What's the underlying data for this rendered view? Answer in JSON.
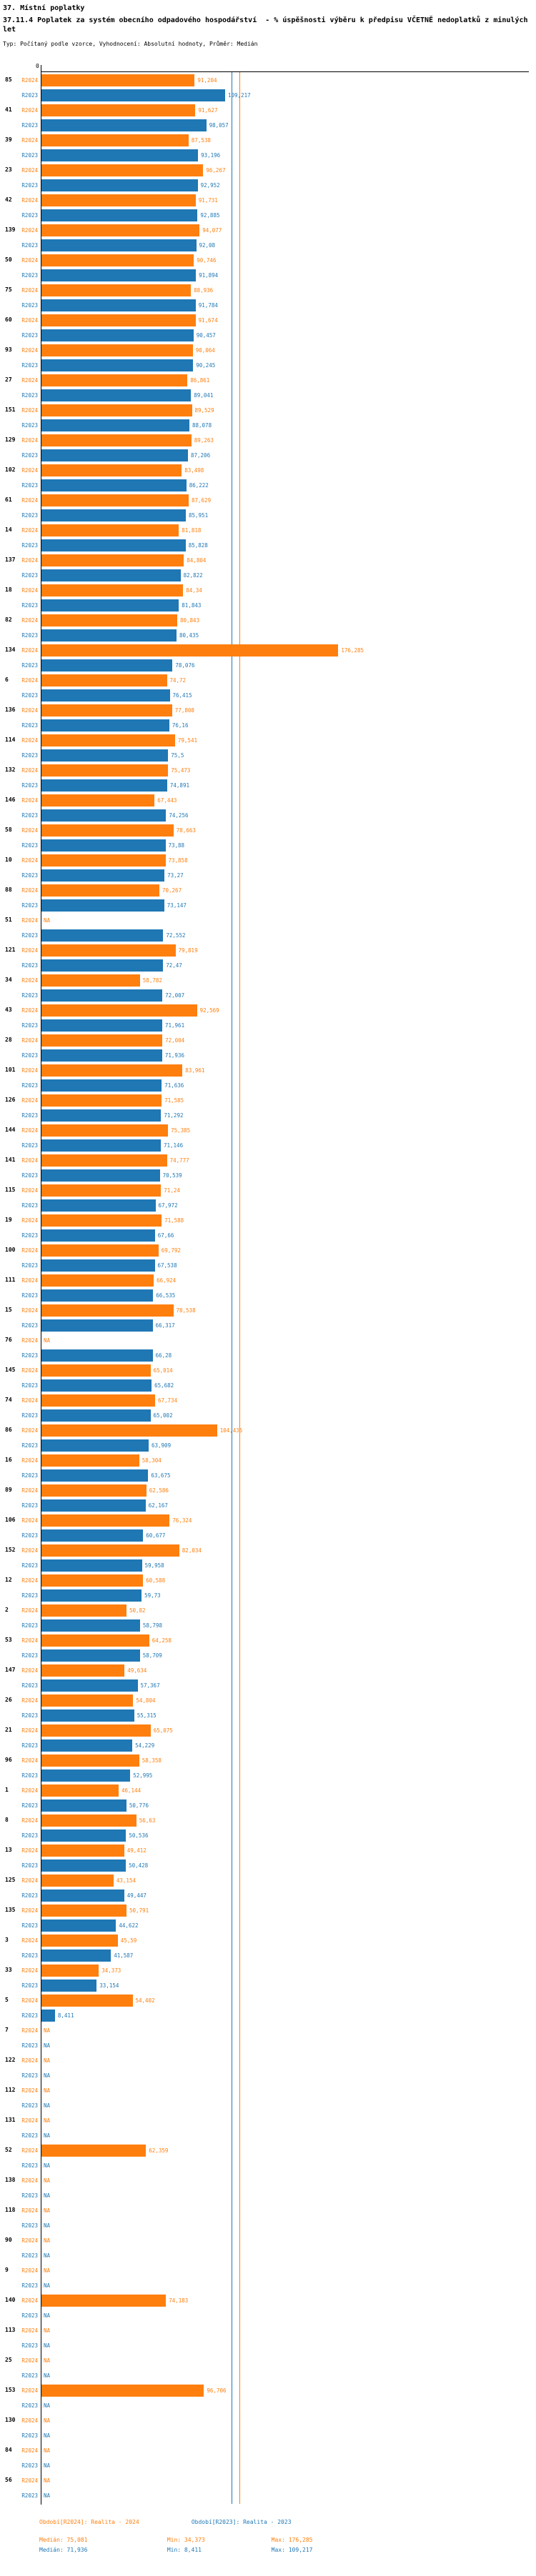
{
  "header": {
    "section": "37. Místní poplatky",
    "title": "37.11.4 Poplatek za systém obecního odpadového hospodářství  - % úspěšnosti výběru k předpisu VČETNĚ nedoplatků z minulých let",
    "meta": "Typ: Počítaný podle vzorce, Vyhodnocení: Absolutní hodnoty, Průměr: Medián"
  },
  "chart_data": {
    "type": "bar",
    "orientation": "horizontal",
    "title": "37.11.4 Poplatek za systém obecního odpadového hospodářství - % úspěšnosti výběru k předpisu VČETNĚ nedoplatků z minulých let",
    "xlabel": "",
    "ylabel": "",
    "axis_origin_label": "0",
    "xlim": [
      0,
      289
    ],
    "grid": false,
    "na_label": "NA",
    "colors": {
      "r2024": "#ff7f0e",
      "r2023": "#1f77b4"
    },
    "series_labels": {
      "r2024": "R2024",
      "r2023": "R2023"
    },
    "reference_lines": {
      "blue_guide_value": 113.0,
      "orange_guide_value": 117.7
    },
    "stats": {
      "r2024": {
        "median": 75.081,
        "min": 34.373,
        "max": 176.285
      },
      "r2023": {
        "median": 71.936,
        "min": 8.411,
        "max": 109.217
      }
    },
    "groups": [
      {
        "id": "85",
        "r2024": "91,204",
        "r2023": "109,217"
      },
      {
        "id": "41",
        "r2024": "91,627",
        "r2023": "98,057"
      },
      {
        "id": "39",
        "r2024": "87,538",
        "r2023": "93,196"
      },
      {
        "id": "23",
        "r2024": "96,267",
        "r2023": "92,952"
      },
      {
        "id": "42",
        "r2024": "91,731",
        "r2023": "92,885"
      },
      {
        "id": "139",
        "r2024": "94,077",
        "r2023": "92,08"
      },
      {
        "id": "50",
        "r2024": "90,746",
        "r2023": "91,894"
      },
      {
        "id": "75",
        "r2024": "88,936",
        "r2023": "91,784"
      },
      {
        "id": "60",
        "r2024": "91,674",
        "r2023": "90,457"
      },
      {
        "id": "93",
        "r2024": "90,064",
        "r2023": "90,245"
      },
      {
        "id": "27",
        "r2024": "86,861",
        "r2023": "89,041"
      },
      {
        "id": "151",
        "r2024": "89,529",
        "r2023": "88,078"
      },
      {
        "id": "129",
        "r2024": "89,263",
        "r2023": "87,206"
      },
      {
        "id": "102",
        "r2024": "83,498",
        "r2023": "86,222"
      },
      {
        "id": "61",
        "r2024": "87,629",
        "r2023": "85,951"
      },
      {
        "id": "14",
        "r2024": "81,818",
        "r2023": "85,828"
      },
      {
        "id": "137",
        "r2024": "84,804",
        "r2023": "82,822"
      },
      {
        "id": "18",
        "r2024": "84,34",
        "r2023": "81,843"
      },
      {
        "id": "82",
        "r2024": "80,843",
        "r2023": "80,435"
      },
      {
        "id": "134",
        "r2024": "176,285",
        "r2023": "78,076"
      },
      {
        "id": "6",
        "r2024": "74,72",
        "r2023": "76,415"
      },
      {
        "id": "136",
        "r2024": "77,808",
        "r2023": "76,16"
      },
      {
        "id": "114",
        "r2024": "79,541",
        "r2023": "75,5"
      },
      {
        "id": "132",
        "r2024": "75,473",
        "r2023": "74,891"
      },
      {
        "id": "146",
        "r2024": "67,443",
        "r2023": "74,256"
      },
      {
        "id": "58",
        "r2024": "78,663",
        "r2023": "73,88"
      },
      {
        "id": "10",
        "r2024": "73,858",
        "r2023": "73,27"
      },
      {
        "id": "88",
        "r2024": "70,267",
        "r2023": "73,147"
      },
      {
        "id": "51",
        "r2024": "NA",
        "r2023": "72,552"
      },
      {
        "id": "121",
        "r2024": "79,819",
        "r2023": "72,47"
      },
      {
        "id": "34",
        "r2024": "58,782",
        "r2023": "72,007"
      },
      {
        "id": "43",
        "r2024": "92,569",
        "r2023": "71,961"
      },
      {
        "id": "28",
        "r2024": "72,004",
        "r2023": "71,936"
      },
      {
        "id": "101",
        "r2024": "83,961",
        "r2023": "71,636"
      },
      {
        "id": "126",
        "r2024": "71,585",
        "r2023": "71,292"
      },
      {
        "id": "144",
        "r2024": "75,385",
        "r2023": "71,146"
      },
      {
        "id": "141",
        "r2024": "74,777",
        "r2023": "70,539"
      },
      {
        "id": "115",
        "r2024": "71,24",
        "r2023": "67,972"
      },
      {
        "id": "19",
        "r2024": "71,588",
        "r2023": "67,66"
      },
      {
        "id": "100",
        "r2024": "69,792",
        "r2023": "67,538"
      },
      {
        "id": "111",
        "r2024": "66,924",
        "r2023": "66,535"
      },
      {
        "id": "15",
        "r2024": "78,538",
        "r2023": "66,317"
      },
      {
        "id": "76",
        "r2024": "NA",
        "r2023": "66,28"
      },
      {
        "id": "145",
        "r2024": "65,014",
        "r2023": "65,682"
      },
      {
        "id": "74",
        "r2024": "67,734",
        "r2023": "65,002"
      },
      {
        "id": "86",
        "r2024": "104,435",
        "r2023": "63,909"
      },
      {
        "id": "16",
        "r2024": "58,304",
        "r2023": "63,675"
      },
      {
        "id": "89",
        "r2024": "62,586",
        "r2023": "62,167"
      },
      {
        "id": "106",
        "r2024": "76,324",
        "r2023": "60,677"
      },
      {
        "id": "152",
        "r2024": "82,034",
        "r2023": "59,958"
      },
      {
        "id": "12",
        "r2024": "60,588",
        "r2023": "59,73"
      },
      {
        "id": "2",
        "r2024": "50,82",
        "r2023": "58,798"
      },
      {
        "id": "53",
        "r2024": "64,258",
        "r2023": "58,709"
      },
      {
        "id": "147",
        "r2024": "49,634",
        "r2023": "57,367"
      },
      {
        "id": "26",
        "r2024": "54,804",
        "r2023": "55,315"
      },
      {
        "id": "21",
        "r2024": "65,075",
        "r2023": "54,229"
      },
      {
        "id": "96",
        "r2024": "58,358",
        "r2023": "52,995"
      },
      {
        "id": "1",
        "r2024": "46,144",
        "r2023": "50,776"
      },
      {
        "id": "8",
        "r2024": "56,63",
        "r2023": "50,536"
      },
      {
        "id": "13",
        "r2024": "49,412",
        "r2023": "50,428"
      },
      {
        "id": "125",
        "r2024": "43,154",
        "r2023": "49,447"
      },
      {
        "id": "135",
        "r2024": "50,791",
        "r2023": "44,622"
      },
      {
        "id": "3",
        "r2024": "45,59",
        "r2023": "41,587"
      },
      {
        "id": "33",
        "r2024": "34,373",
        "r2023": "33,154"
      },
      {
        "id": "5",
        "r2024": "54,402",
        "r2023": "8,411"
      },
      {
        "id": "7",
        "r2024": "NA",
        "r2023": "NA"
      },
      {
        "id": "122",
        "r2024": "NA",
        "r2023": "NA"
      },
      {
        "id": "112",
        "r2024": "NA",
        "r2023": "NA"
      },
      {
        "id": "131",
        "r2024": "NA",
        "r2023": "NA"
      },
      {
        "id": "52",
        "r2024": "62,359",
        "r2023": "NA"
      },
      {
        "id": "138",
        "r2024": "NA",
        "r2023": "NA"
      },
      {
        "id": "118",
        "r2024": "NA",
        "r2023": "NA"
      },
      {
        "id": "90",
        "r2024": "NA",
        "r2023": "NA"
      },
      {
        "id": "9",
        "r2024": "NA",
        "r2023": "NA"
      },
      {
        "id": "140",
        "r2024": "74,183",
        "r2023": "NA"
      },
      {
        "id": "113",
        "r2024": "NA",
        "r2023": "NA"
      },
      {
        "id": "25",
        "r2024": "NA",
        "r2023": "NA"
      },
      {
        "id": "153",
        "r2024": "96,706",
        "r2023": "NA"
      },
      {
        "id": "130",
        "r2024": "NA",
        "r2023": "NA"
      },
      {
        "id": "84",
        "r2024": "NA",
        "r2023": "NA"
      },
      {
        "id": "56",
        "r2024": "NA",
        "r2023": "NA"
      }
    ]
  },
  "footer": {
    "legend_r2024": "Období[R2024]: Realita - 2024",
    "legend_r2023": "Období[R2023]: Realita - 2023",
    "stats_r2024": {
      "median": "Medián: 75,081",
      "min": "Min: 34,373",
      "max": "Max: 176,285"
    },
    "stats_r2023": {
      "median": "Medián: 71,936",
      "min": "Min: 8,411",
      "max": "Max: 109,217"
    }
  }
}
